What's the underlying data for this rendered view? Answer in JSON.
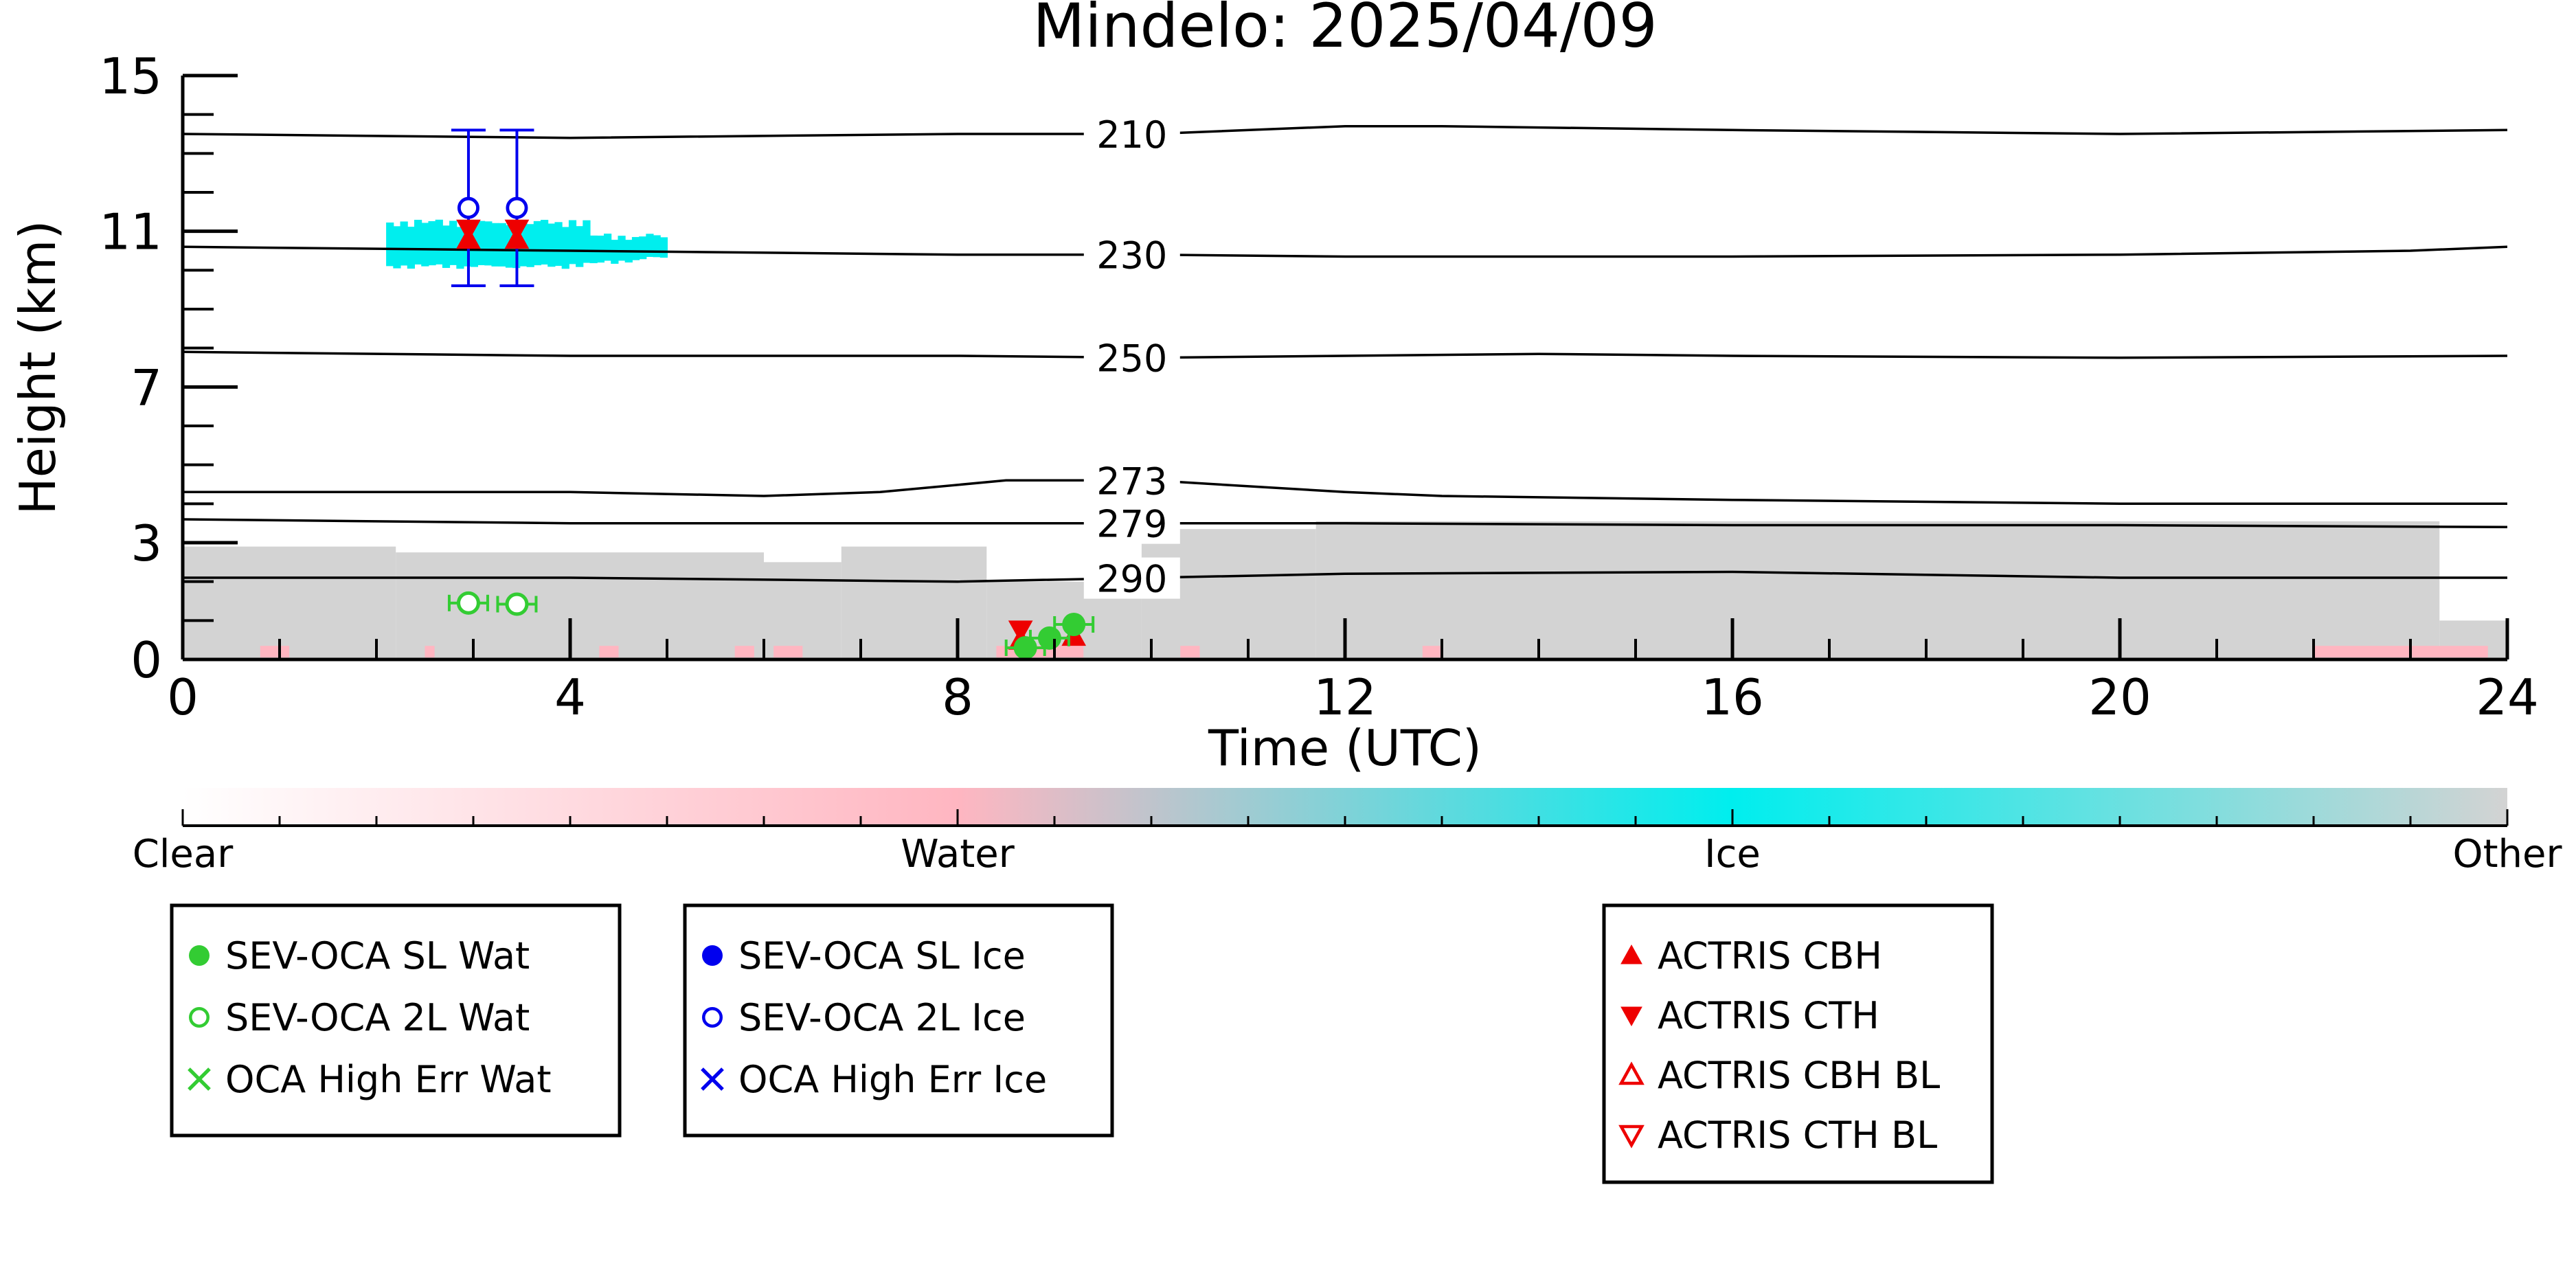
{
  "chart_data": {
    "type": "scatter",
    "title": "Mindelo: 2025/04/09",
    "xlabel": "Time (UTC)",
    "ylabel": "Height (km)",
    "xlim": [
      0,
      24
    ],
    "ylim": [
      0,
      15
    ],
    "x_ticks": [
      "0",
      "4",
      "8",
      "12",
      "16",
      "20",
      "24"
    ],
    "y_ticks": [
      "0",
      "3",
      "7",
      "11",
      "15"
    ],
    "temperature_contours": [
      {
        "label": "210",
        "points": [
          [
            0,
            13.5
          ],
          [
            4,
            13.4
          ],
          [
            8,
            13.5
          ],
          [
            10,
            13.5
          ],
          [
            12,
            13.7
          ],
          [
            13,
            13.7
          ],
          [
            16,
            13.6
          ],
          [
            20,
            13.5
          ],
          [
            24,
            13.6
          ]
        ]
      },
      {
        "label": "230",
        "points": [
          [
            0,
            10.6
          ],
          [
            4,
            10.5
          ],
          [
            8,
            10.4
          ],
          [
            10,
            10.4
          ],
          [
            12,
            10.35
          ],
          [
            16,
            10.35
          ],
          [
            20,
            10.4
          ],
          [
            23,
            10.5
          ],
          [
            24,
            10.6
          ]
        ]
      },
      {
        "label": "250",
        "points": [
          [
            0,
            7.9
          ],
          [
            4,
            7.8
          ],
          [
            8,
            7.8
          ],
          [
            10,
            7.75
          ],
          [
            12,
            7.8
          ],
          [
            14,
            7.85
          ],
          [
            16,
            7.8
          ],
          [
            20,
            7.75
          ],
          [
            24,
            7.8
          ]
        ]
      },
      {
        "label": "273",
        "points": [
          [
            0,
            4.3
          ],
          [
            4,
            4.3
          ],
          [
            6,
            4.2
          ],
          [
            7.2,
            4.3
          ],
          [
            8.5,
            4.6
          ],
          [
            10,
            4.6
          ],
          [
            12,
            4.3
          ],
          [
            13,
            4.2
          ],
          [
            16,
            4.1
          ],
          [
            20,
            4.0
          ],
          [
            24,
            4.0
          ]
        ]
      },
      {
        "label": "279",
        "points": [
          [
            0,
            3.6
          ],
          [
            4,
            3.5
          ],
          [
            8,
            3.5
          ],
          [
            12,
            3.5
          ],
          [
            16,
            3.45
          ],
          [
            20,
            3.45
          ],
          [
            24,
            3.4
          ]
        ]
      },
      {
        "label": "290",
        "points": [
          [
            0,
            2.1
          ],
          [
            4,
            2.1
          ],
          [
            8,
            2.0
          ],
          [
            12,
            2.2
          ],
          [
            16,
            2.25
          ],
          [
            20,
            2.1
          ],
          [
            24,
            2.1
          ]
        ]
      }
    ],
    "series": [
      {
        "name": "SEV-OCA SL Wat",
        "color": "#33cc33",
        "marker": "filled-circle",
        "points": [
          {
            "x": 8.7,
            "y": 0.3,
            "err": 0.2
          },
          {
            "x": 8.95,
            "y": 0.55,
            "err": 0.2
          },
          {
            "x": 9.2,
            "y": 0.9,
            "err": 0.25
          }
        ]
      },
      {
        "name": "SEV-OCA 2L Wat",
        "color": "#33cc33",
        "marker": "open-circle",
        "points": [
          {
            "x": 2.95,
            "y": 1.45,
            "err": 0.15
          },
          {
            "x": 3.45,
            "y": 1.42,
            "err": 0.15
          }
        ]
      },
      {
        "name": "OCA High Err Wat",
        "color": "#33cc33",
        "marker": "x",
        "points": []
      },
      {
        "name": "SEV-OCA SL Ice",
        "color": "#0000ee",
        "marker": "filled-circle",
        "points": []
      },
      {
        "name": "SEV-OCA 2L Ice",
        "color": "#0000ee",
        "marker": "open-circle",
        "points": [
          {
            "x": 2.95,
            "y": 11.6,
            "err": 2.0
          },
          {
            "x": 3.45,
            "y": 11.6,
            "err": 2.0
          }
        ]
      },
      {
        "name": "OCA High Err Ice",
        "color": "#0000ee",
        "marker": "x",
        "points": []
      },
      {
        "name": "ACTRIS CBH",
        "color": "#ee0000",
        "marker": "filled-triangle-up",
        "points": [
          {
            "x": 2.95,
            "y": 10.8
          },
          {
            "x": 3.45,
            "y": 10.8
          },
          {
            "x": 8.65,
            "y": 0.5
          },
          {
            "x": 9.2,
            "y": 0.6
          }
        ]
      },
      {
        "name": "ACTRIS CTH",
        "color": "#ee0000",
        "marker": "filled-triangle-down",
        "points": [
          {
            "x": 2.95,
            "y": 11.05
          },
          {
            "x": 3.45,
            "y": 11.05
          },
          {
            "x": 8.65,
            "y": 0.75
          }
        ]
      },
      {
        "name": "ACTRIS CBH BL",
        "color": "#ee0000",
        "marker": "open-triangle-up",
        "points": []
      },
      {
        "name": "ACTRIS CTH BL",
        "color": "#ee0000",
        "marker": "open-triangle-down",
        "points": []
      }
    ],
    "cloud_mask": {
      "other_color": "#d3d3d3",
      "ice_color": "#00eeee",
      "water_color": "#ffb6c1",
      "other_segments": [
        {
          "x0": 0,
          "x1": 2.2,
          "top": 2.9
        },
        {
          "x0": 2.2,
          "x1": 6.0,
          "top": 2.75
        },
        {
          "x0": 6.0,
          "x1": 6.8,
          "top": 2.5
        },
        {
          "x0": 6.8,
          "x1": 8.3,
          "top": 2.9
        },
        {
          "x0": 8.3,
          "x1": 9.9,
          "top": 2.0
        },
        {
          "x0": 9.9,
          "x1": 11.7,
          "top": 3.35
        },
        {
          "x0": 11.7,
          "x1": 23.3,
          "top": 3.55
        },
        {
          "x0": 23.3,
          "x1": 24,
          "top": 1.0
        }
      ],
      "ice_band": {
        "x0": 2.1,
        "x1": 5.0,
        "y0": 10.0,
        "y1": 11.3
      }
    },
    "colorbar": {
      "labels": [
        "Clear",
        "Water",
        "Ice",
        "Other"
      ],
      "colors": [
        "#ffffff",
        "#ffb6c1",
        "#00eeee",
        "#d3d3d3"
      ]
    },
    "grid": false,
    "legend_placement": "bottom"
  },
  "legends": {
    "water": [
      "SEV-OCA SL Wat",
      "SEV-OCA 2L Wat",
      "OCA High Err Wat"
    ],
    "ice": [
      "SEV-OCA SL Ice",
      "SEV-OCA 2L Ice",
      "OCA High Err Ice"
    ],
    "actris": [
      "ACTRIS CBH",
      "ACTRIS CTH",
      "ACTRIS CBH BL",
      "ACTRIS CTH BL"
    ]
  }
}
